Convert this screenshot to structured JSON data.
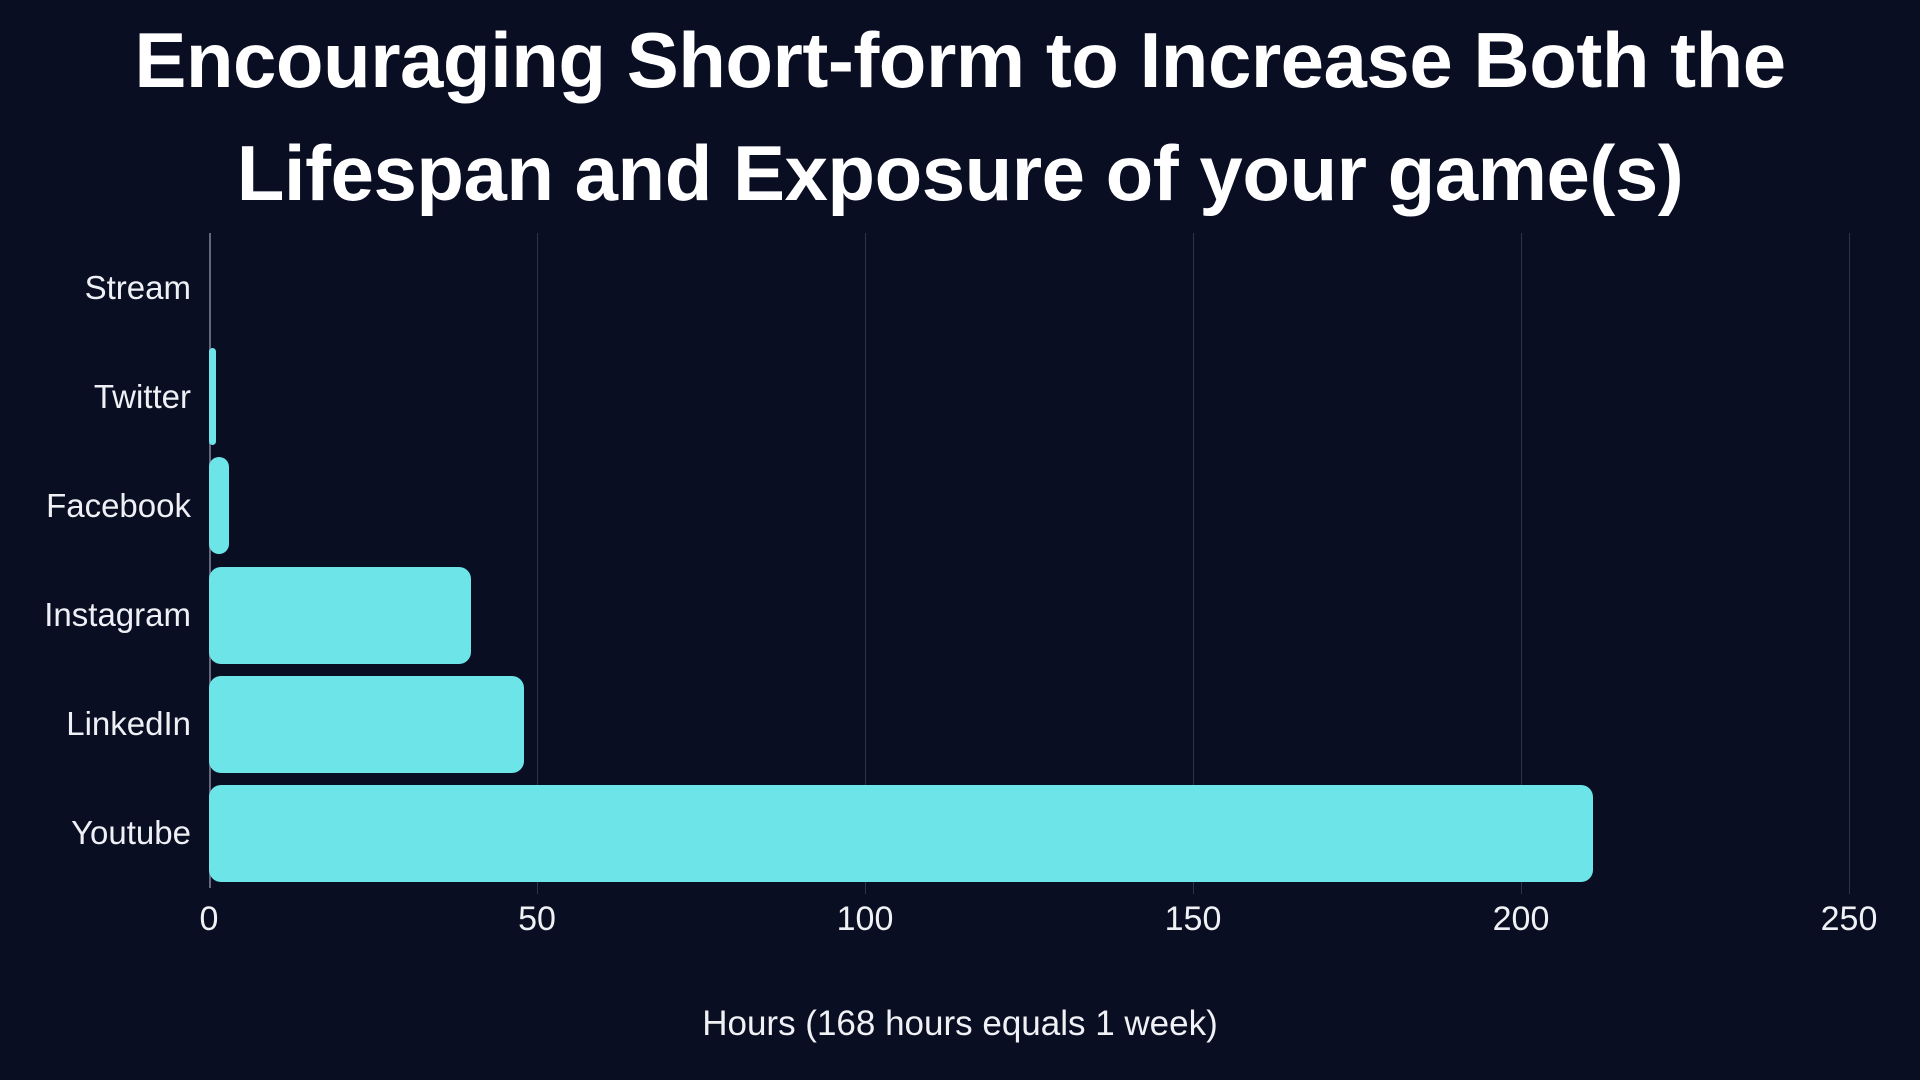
{
  "chart": {
    "title_line1": "Encouraging Short-form to Increase Both the",
    "title_line2": "Lifespan and Exposure of your game(s)",
    "xlabel": "Hours (168 hours equals 1 week)"
  },
  "chart_data": {
    "type": "bar",
    "orientation": "horizontal",
    "title": "Encouraging Short-form to Increase Both the Lifespan and Exposure of your game(s)",
    "categories": [
      "Stream",
      "Twitter",
      "Facebook",
      "Instagram",
      "LinkedIn",
      "Youtube"
    ],
    "values": [
      0,
      1,
      3,
      40,
      48,
      211
    ],
    "xlabel": "Hours (168 hours equals 1 week)",
    "ylabel": "",
    "xlim": [
      0,
      250
    ],
    "xticks": [
      0,
      50,
      100,
      150,
      200,
      250
    ],
    "grid": true,
    "legend": false,
    "bar_color": "#6de5e8",
    "background_color": "#0a0e23",
    "text_color": "#f2f3f7"
  }
}
